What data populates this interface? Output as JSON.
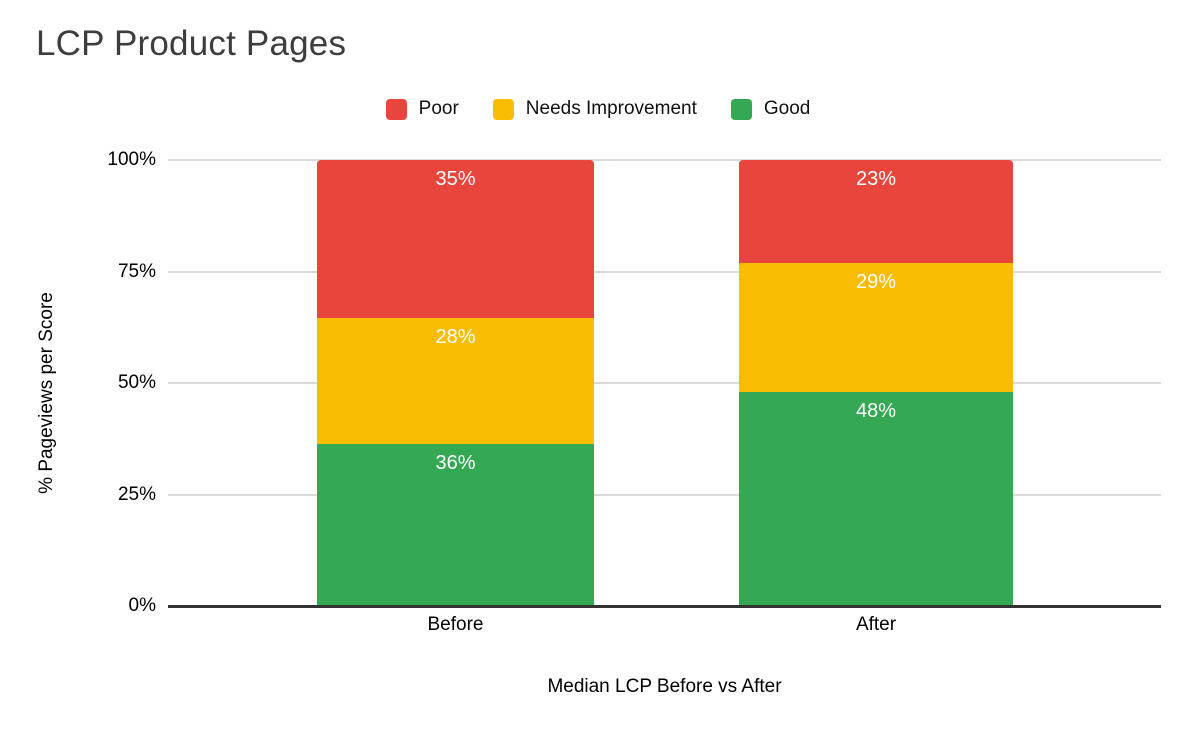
{
  "chart_data": {
    "type": "bar",
    "stacked": true,
    "normalized_to_100": true,
    "title": "LCP Product Pages",
    "xlabel": "Median LCP Before vs After",
    "ylabel": "% Pageviews per Score",
    "categories": [
      "Before",
      "After"
    ],
    "series": [
      {
        "name": "Poor",
        "color": "#E8453C",
        "values": [
          35,
          23
        ]
      },
      {
        "name": "Needs Improvement",
        "color": "#FBBC04",
        "values": [
          28,
          29
        ]
      },
      {
        "name": "Good",
        "color": "#34A853",
        "values": [
          36,
          48
        ]
      }
    ],
    "data_label_suffix": "%",
    "data_label_color": "#ffffff",
    "yticks": [
      "0%",
      "25%",
      "50%",
      "75%",
      "100%"
    ],
    "ytick_values": [
      0,
      25,
      50,
      75,
      100
    ],
    "ylim": [
      0,
      100
    ],
    "grid": true,
    "gridline_color": "#d9d9d9",
    "axis_line_color": "#333333",
    "background_color": "#ffffff",
    "title_color": "#3d3d3d",
    "legend_position": "top"
  }
}
